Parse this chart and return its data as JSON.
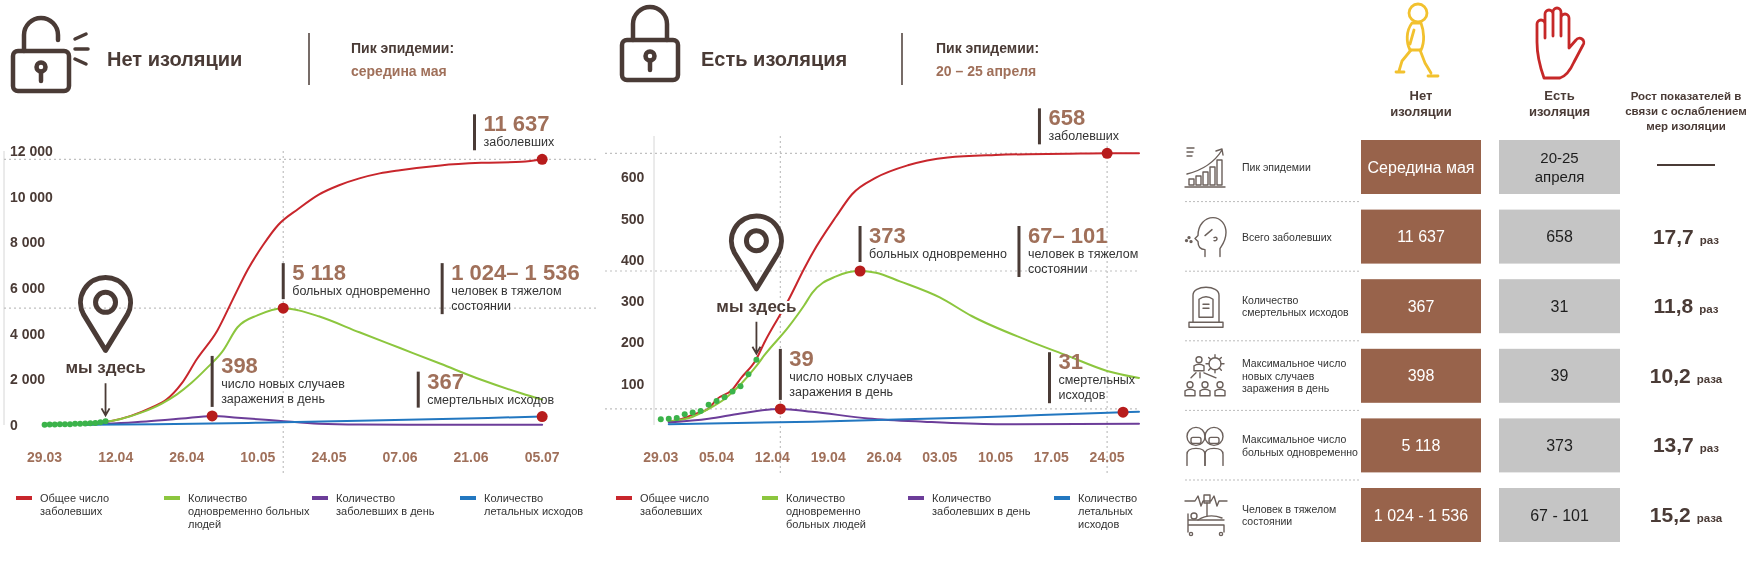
{
  "chart_data": [
    {
      "type": "line",
      "title": "Нет изоляции",
      "subtitle": "Пик эпидемии:\nсередина мая",
      "xlim": [
        "--03-21",
        "--07-16"
      ],
      "xticks": [
        {
          "value": "--03-29",
          "label": "29.03"
        },
        {
          "value": "--04-12",
          "label": "12.04"
        },
        {
          "value": "--04-26",
          "label": "26.04"
        },
        {
          "value": "--05-10",
          "label": "10.05"
        },
        {
          "value": "--05-24",
          "label": "24.05"
        },
        {
          "value": "--06-07",
          "label": "07.06"
        },
        {
          "value": "--06-21",
          "label": "21.06"
        },
        {
          "value": "--07-05",
          "label": "05.07"
        }
      ],
      "ylim": [
        0,
        12000
      ],
      "yticks": [
        0,
        {
          "value": 2000,
          "label": "2 000"
        },
        {
          "value": 4000,
          "label": "4 000"
        },
        {
          "value": 6000,
          "label": "6 000"
        },
        {
          "value": 8000,
          "label": "8 000"
        },
        {
          "value": 10000,
          "label": "10 000"
        },
        {
          "value": 12000,
          "label": "12 000"
        }
      ],
      "legend": "bottom",
      "series": [
        {
          "name": "Общее число заболевших",
          "color": "#c8262c",
          "x": [
            "--04-06",
            "--04-11",
            "--04-15",
            "--04-19",
            "--04-22",
            "--04-25",
            "--04-28",
            "--05-02",
            "--05-05",
            "--05-08",
            "--05-11",
            "--05-14",
            "--05-18",
            "--05-22",
            "--05-26",
            "--05-30",
            "--06-03",
            "--06-07",
            "--06-15",
            "--06-23",
            "--07-01",
            "--07-05"
          ],
          "values": [
            40,
            170,
            400,
            760,
            1110,
            1820,
            2890,
            4130,
            5470,
            6800,
            7870,
            8760,
            9470,
            10090,
            10500,
            10800,
            11020,
            11160,
            11370,
            11480,
            11530,
            11637
          ]
        },
        {
          "name": "Количество одновременно больных людей",
          "color": "#8cc63e",
          "x": [
            "--04-06",
            "--04-13",
            "--04-17",
            "--04-21",
            "--04-24",
            "--04-27",
            "--04-30",
            "--05-03",
            "--05-06",
            "--05-10",
            "--05-15",
            "--05-18",
            "--05-22",
            "--05-30",
            "--06-07",
            "--06-15",
            "--06-23",
            "--07-01",
            "--07-05"
          ],
          "values": [
            30,
            260,
            540,
            930,
            1330,
            1860,
            2500,
            3210,
            4280,
            4810,
            5118,
            5020,
            4760,
            4060,
            3370,
            2680,
            1980,
            1380,
            1110
          ]
        },
        {
          "name": "Количество заболевших в день",
          "color": "#6c3d99",
          "x": [
            "--04-06",
            "--04-18",
            "--04-25",
            "--05-01",
            "--05-06",
            "--05-14",
            "--05-22",
            "--05-30",
            "--06-15",
            "--07-05"
          ],
          "values": [
            10,
            150,
            280,
            398,
            320,
            190,
            60,
            20,
            10,
            10
          ]
        },
        {
          "name": "Количество летальных исходов",
          "color": "#2277c0",
          "x": [
            "--04-06",
            "--04-20",
            "--05-10",
            "--05-30",
            "--06-20",
            "--07-05"
          ],
          "values": [
            10,
            30,
            100,
            190,
            290,
            367
          ]
        },
        {
          "type": "scatter",
          "marker": "circle",
          "color": "#3bb34a",
          "x": [
            "--03-29",
            "--03-30",
            "--03-31",
            "--04-01",
            "--04-02",
            "--04-03",
            "--04-04",
            "--04-05",
            "--04-06",
            "--04-07",
            "--04-08",
            "--04-09",
            "--04-10"
          ],
          "values": [
            10,
            20,
            20,
            30,
            30,
            30,
            50,
            60,
            70,
            80,
            90,
            120,
            160
          ]
        }
      ],
      "ref_lines": [
        {
          "axis": "y",
          "value": 11637,
          "color": "#c0c0c0",
          "line_style": "dotted"
        },
        {
          "axis": "y",
          "value": 5118,
          "color": "#c0c0c0",
          "line_style": "dotted"
        },
        {
          "axis": "x",
          "value": "--05-15",
          "color": "#c0c0c0",
          "line_style": "dotted"
        }
      ],
      "annotations": [
        {
          "text": "11 637\nзаболевших",
          "x": "--07-05",
          "y": 11637
        },
        {
          "text": "5 118\nбольных одновременно",
          "x": "--05-15",
          "y": 5118
        },
        "1 024– 1 536\nчеловек в тяжелом\nсостоянии",
        {
          "text": "398\nчисло новых случаев\nзаражения в день",
          "x": "--05-01",
          "y": 398
        },
        {
          "text": "367\nсмертельных исходов",
          "x": "--07-05",
          "y": 367
        },
        {
          "text": "мы здесь",
          "x": "--04-10",
          "y": 160
        }
      ]
    },
    {
      "type": "line",
      "title": "Есть изоляция",
      "subtitle": "Пик эпидемии:\n20 – 25 апреля",
      "xlim": [
        "--03-22",
        "--05-28"
      ],
      "xticks": [
        {
          "value": "--03-29",
          "label": "29.03"
        },
        {
          "value": "--04-05",
          "label": "05.04"
        },
        {
          "value": "--04-12",
          "label": "12.04"
        },
        {
          "value": "--04-19",
          "label": "19.04"
        },
        {
          "value": "--04-26",
          "label": "26.04"
        },
        {
          "value": "--05-03",
          "label": "03.05"
        },
        {
          "value": "--05-10",
          "label": "10.05"
        },
        {
          "value": "--05-17",
          "label": "17.05"
        },
        {
          "value": "--05-24",
          "label": "24.05"
        }
      ],
      "ylim": [
        0,
        700
      ],
      "yticks": [
        100,
        200,
        300,
        400,
        500,
        600
      ],
      "legend": "bottom",
      "series": [
        {
          "name": "Общее число заболевших",
          "color": "#c8262c",
          "x": [
            "--03-30",
            "--04-01",
            "--04-02",
            "--04-04",
            "--04-05",
            "--04-07",
            "--04-08",
            "--04-10",
            "--04-11",
            "--04-14",
            "--04-16",
            "--04-17",
            "--04-20",
            "--04-22",
            "--04-25",
            "--04-29",
            "--05-04",
            "--05-10",
            "--05-14",
            "--05-19",
            "--05-24",
            "--05-28"
          ],
          "values": [
            8,
            17,
            25,
            40,
            62,
            86,
            112,
            160,
            200,
            302,
            379,
            415,
            505,
            559,
            599,
            629,
            648,
            654,
            656,
            657,
            658,
            658
          ]
        },
        {
          "name": "Количество одновременно больных людей",
          "color": "#8cc63e",
          "x": [
            "--03-30",
            "--04-02",
            "--04-04",
            "--04-06",
            "--04-08",
            "--04-10",
            "--04-11",
            "--04-14",
            "--04-16",
            "--04-17",
            "--04-20",
            "--04-23",
            "--04-25",
            "--04-28",
            "--05-03",
            "--05-07",
            "--05-14",
            "--05-19",
            "--05-24",
            "--05-28"
          ],
          "values": [
            8,
            20,
            39,
            63,
            98,
            143,
            169,
            237,
            290,
            320,
            360,
            373,
            369,
            348,
            309,
            264,
            205,
            168,
            131,
            114
          ]
        },
        {
          "name": "Количество заболевших в день",
          "color": "#6c3d99",
          "x": [
            "--03-30",
            "--04-04",
            "--04-08",
            "--04-13",
            "--04-17",
            "--04-24",
            "--05-01",
            "--05-10",
            "--05-28"
          ],
          "values": [
            6,
            15,
            28,
            39,
            32,
            16,
            8,
            2,
            3
          ]
        },
        {
          "name": "Количество летальных исходов",
          "color": "#2277c0",
          "x": [
            "--03-30",
            "--04-17",
            "--05-07",
            "--05-26",
            "--05-28"
          ],
          "values": [
            2,
            8,
            18,
            31,
            32
          ]
        },
        {
          "type": "scatter",
          "marker": "circle",
          "color": "#3bb34a",
          "x": [
            "--03-29",
            "--03-30",
            "--03-31",
            "--04-01",
            "--04-02",
            "--04-03",
            "--04-04",
            "--04-05",
            "--04-06",
            "--04-07",
            "--04-08",
            "--04-09",
            "--04-10"
          ],
          "values": [
            14,
            15,
            17,
            26,
            30,
            34,
            49,
            58,
            67,
            81,
            94,
            123,
            158
          ]
        }
      ],
      "ref_lines": [
        {
          "axis": "y",
          "value": 658,
          "color": "#c0c0c0",
          "line_style": "dotted"
        },
        {
          "axis": "y",
          "value": 373,
          "color": "#c0c0c0",
          "line_style": "dotted"
        },
        {
          "axis": "y",
          "value": 39,
          "color": "#c0c0c0",
          "line_style": "dotted"
        },
        {
          "axis": "x",
          "value": "--04-13",
          "color": "#c0c0c0",
          "line_style": "dotted"
        },
        {
          "axis": "x",
          "value": "--05-24",
          "color": "#c0c0c0",
          "line_style": "dotted"
        }
      ],
      "annotations": [
        {
          "text": "658\nзаболевших",
          "x": "--05-24",
          "y": 658
        },
        {
          "text": "373\nбольных одновременно",
          "x": "--04-23",
          "y": 373
        },
        "67– 101\nчеловек в тяжелом\nсостоянии",
        {
          "text": "39\nчисло новых случаев\nзаражения в день",
          "x": "--04-13",
          "y": 39
        },
        {
          "text": "31\nсмертельных\nисходов",
          "x": "--05-26",
          "y": 31
        },
        {
          "text": "мы здесь",
          "x": "--04-10",
          "y": 158
        }
      ]
    },
    {
      "type": "other",
      "categories": [
        "Пик эпидемии",
        "Всего заболевших",
        "Количество смертельных исходов",
        "Максимальное число новых случаев заражения в день",
        "Максимальное число больных одновременно",
        "Человек в тяжелом состоянии"
      ],
      "annotations": [
        "Нет изоляции",
        "Есть изоляция",
        "Рост показателей в связи с ослаблением мер изоляции"
      ],
      "series": [
        {
          "color": "#98634b",
          "values": [
            null,
            11637,
            367,
            398,
            5118,
            null
          ],
          "value_labels": [
            "Середина мая",
            "11 637",
            "367",
            "398",
            "5 118",
            "1 024 - 1 536"
          ]
        },
        {
          "color": "#c5c5c5",
          "values": [
            null,
            658,
            31,
            39,
            373,
            null
          ],
          "value_labels": [
            "20-25\nапреля",
            "658",
            "31",
            "39",
            "373",
            "67 - 101"
          ]
        },
        {
          "values": [
            null,
            17.7,
            11.8,
            10.2,
            13.7,
            15.2
          ],
          "value_labels": [
            null,
            "17,7 раз",
            "11,8 раз",
            "10,2 раза",
            "13,7 раз",
            "15,2 раза"
          ]
        }
      ]
    }
  ]
}
